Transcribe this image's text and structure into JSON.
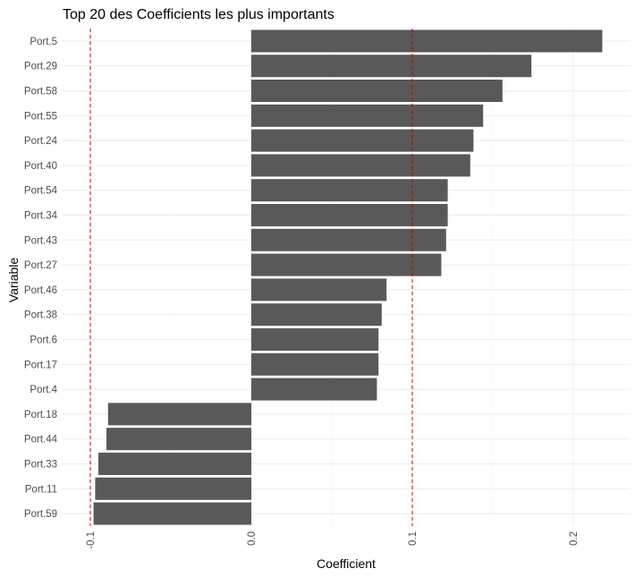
{
  "chart_data": {
    "type": "bar",
    "orientation": "horizontal",
    "title": "Top 20 des Coefficients les plus importants",
    "xlabel": "Coefficient",
    "ylabel": "Variable",
    "categories": [
      "Port.5",
      "Port.29",
      "Port.58",
      "Port.55",
      "Port.24",
      "Port.40",
      "Port.54",
      "Port.34",
      "Port.43",
      "Port.27",
      "Port.46",
      "Port.38",
      "Port.6",
      "Port.17",
      "Port.4",
      "Port.18",
      "Port.44",
      "Port.33",
      "Port.11",
      "Port.59"
    ],
    "values": [
      0.218,
      0.174,
      0.156,
      0.144,
      0.138,
      0.136,
      0.122,
      0.122,
      0.121,
      0.118,
      0.084,
      0.081,
      0.079,
      0.079,
      0.078,
      -0.089,
      -0.09,
      -0.095,
      -0.097,
      -0.098
    ],
    "xlim": [
      -0.11,
      0.225
    ],
    "xticks": [
      -0.1,
      0.0,
      0.1,
      0.2
    ],
    "xtick_labels": [
      "-0.1",
      "0.0",
      "0.1",
      "0.2"
    ],
    "reference_lines": [
      -0.1,
      0.1
    ],
    "colors": {
      "bar": "#595959",
      "reference_line": "#cc0000",
      "grid": "#ebebeb"
    },
    "grid": true,
    "legend": "none"
  }
}
